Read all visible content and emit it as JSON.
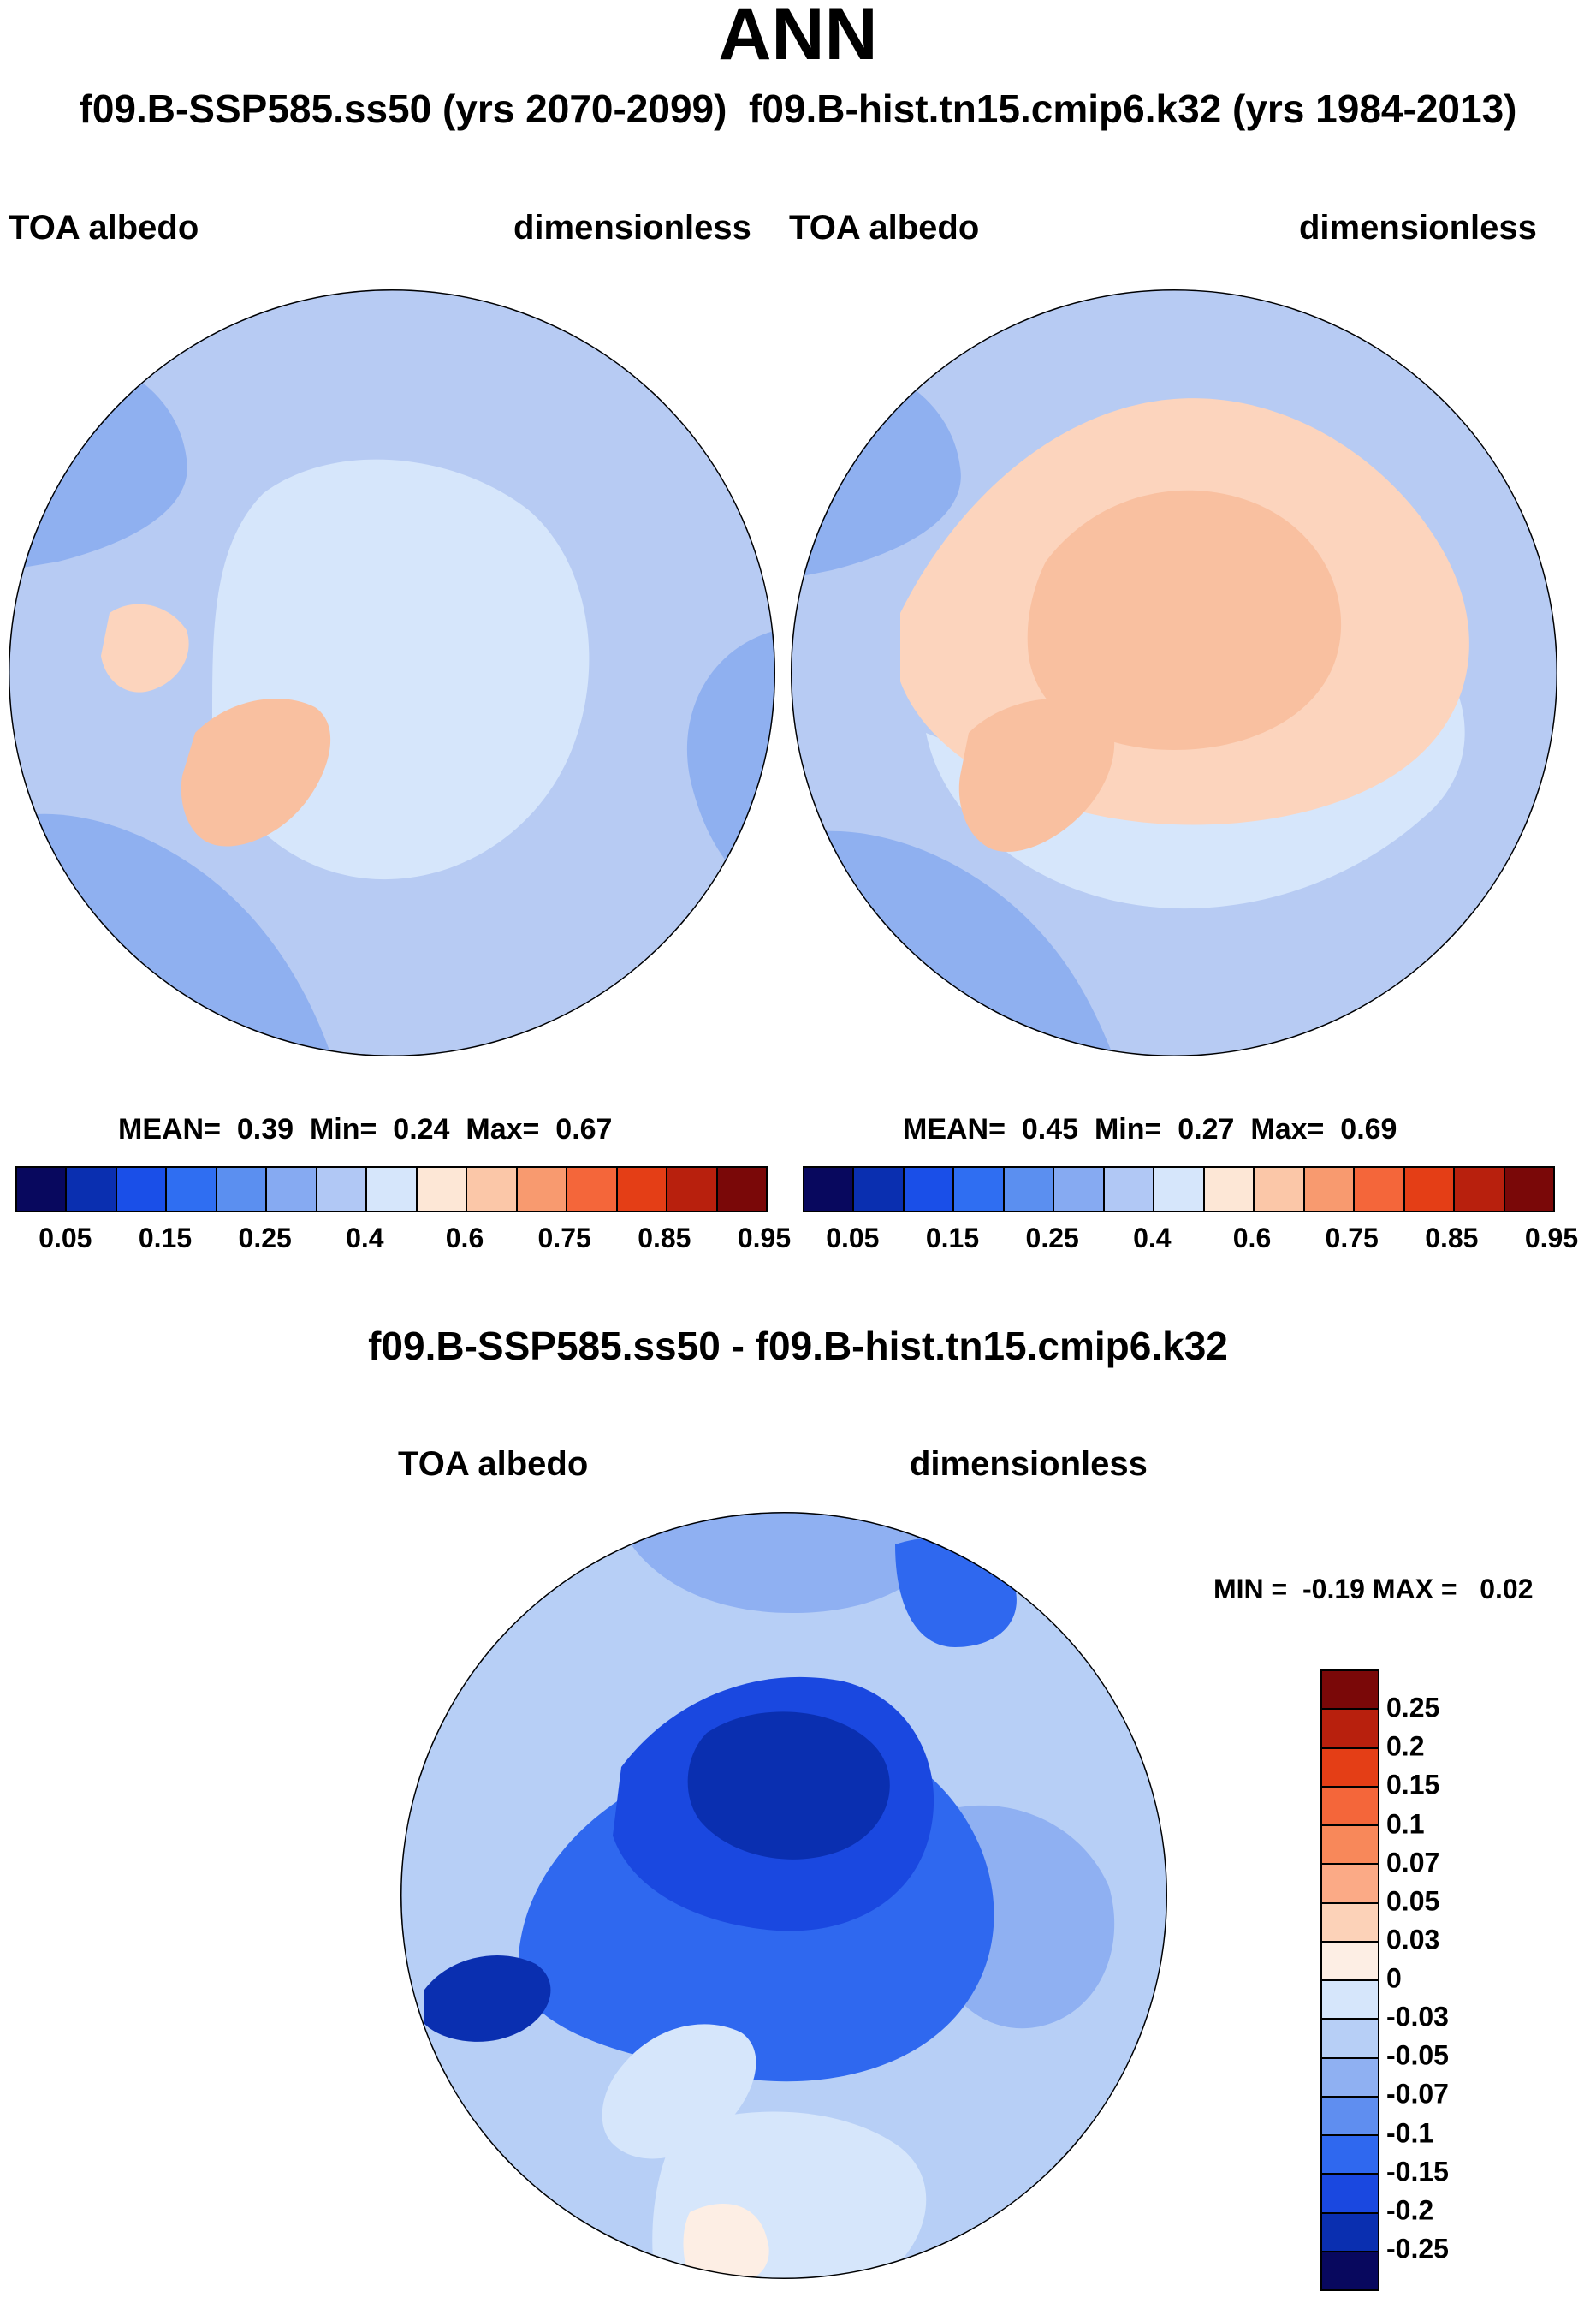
{
  "header": {
    "title": "ANN",
    "subtitle_left": "f09.B-SSP585.ss50 (yrs 2070-2099)",
    "subtitle_right": "f09.B-hist.tn15.cmip6.k32 (yrs 1984-2013)"
  },
  "panel1": {
    "var_label": "TOA albedo",
    "units_label": "dimensionless",
    "stats": {
      "mean_label": "MEAN=",
      "mean": "0.39",
      "min_label": "Min=",
      "min": "0.24",
      "max_label": "Max=",
      "max": "0.67"
    }
  },
  "panel2": {
    "var_label": "TOA albedo",
    "units_label": "dimensionless",
    "stats": {
      "mean_label": "MEAN=",
      "mean": "0.45",
      "min_label": "Min=",
      "min": "0.27",
      "max_label": "Max=",
      "max": "0.69"
    }
  },
  "abs_colorbar": {
    "colors": [
      "#08085e",
      "#0a2fb0",
      "#1a4fe8",
      "#2f6ef2",
      "#5b8ff0",
      "#86aaf2",
      "#b1c8f5",
      "#d6e6fb",
      "#fde7d6",
      "#fbc7a8",
      "#f89a6f",
      "#f4663a",
      "#e43e16",
      "#b8200d",
      "#7a0808"
    ],
    "tick_labels": [
      "0.05",
      "0.15",
      "0.25",
      "0.4",
      "0.6",
      "0.75",
      "0.85",
      "0.95"
    ]
  },
  "diff_panel": {
    "title": "f09.B-SSP585.ss50 - f09.B-hist.tn15.cmip6.k32",
    "var_label": "TOA albedo",
    "units_label": "dimensionless",
    "minmax": "MIN =  -0.19 MAX =   0.02"
  },
  "diff_colorbar": {
    "colors": [
      "#7a0808",
      "#b8200d",
      "#e43e16",
      "#f4663a",
      "#f8885a",
      "#fbaa86",
      "#fcd2b8",
      "#fdeee4",
      "#d6e6fb",
      "#b7cff6",
      "#8fb0f2",
      "#5f8ef0",
      "#2f68ef",
      "#1a48e0",
      "#0a2fb0",
      "#08085e"
    ],
    "tick_labels": [
      "0.25",
      "0.2",
      "0.15",
      "0.1",
      "0.07",
      "0.05",
      "0.03",
      "0",
      "-0.03",
      "-0.05",
      "-0.07",
      "-0.1",
      "-0.15",
      "-0.2",
      "-0.25"
    ]
  },
  "map_colors": {
    "ocean_a": "#b7cbf3",
    "ocean_b": "#8fb0f0",
    "ice": "#d6e6fb",
    "high": "#fcd4bd",
    "higher": "#f9c0a0",
    "diff_bg": "#b7cff6",
    "diff_mid": "#8fb0f2",
    "diff_strong": "#2f68ef",
    "diff_stronger": "#1a48e0",
    "diff_deep": "#0a2fb0",
    "diff_pale": "#d6e6fb",
    "diff_warm": "#fdeee4"
  }
}
